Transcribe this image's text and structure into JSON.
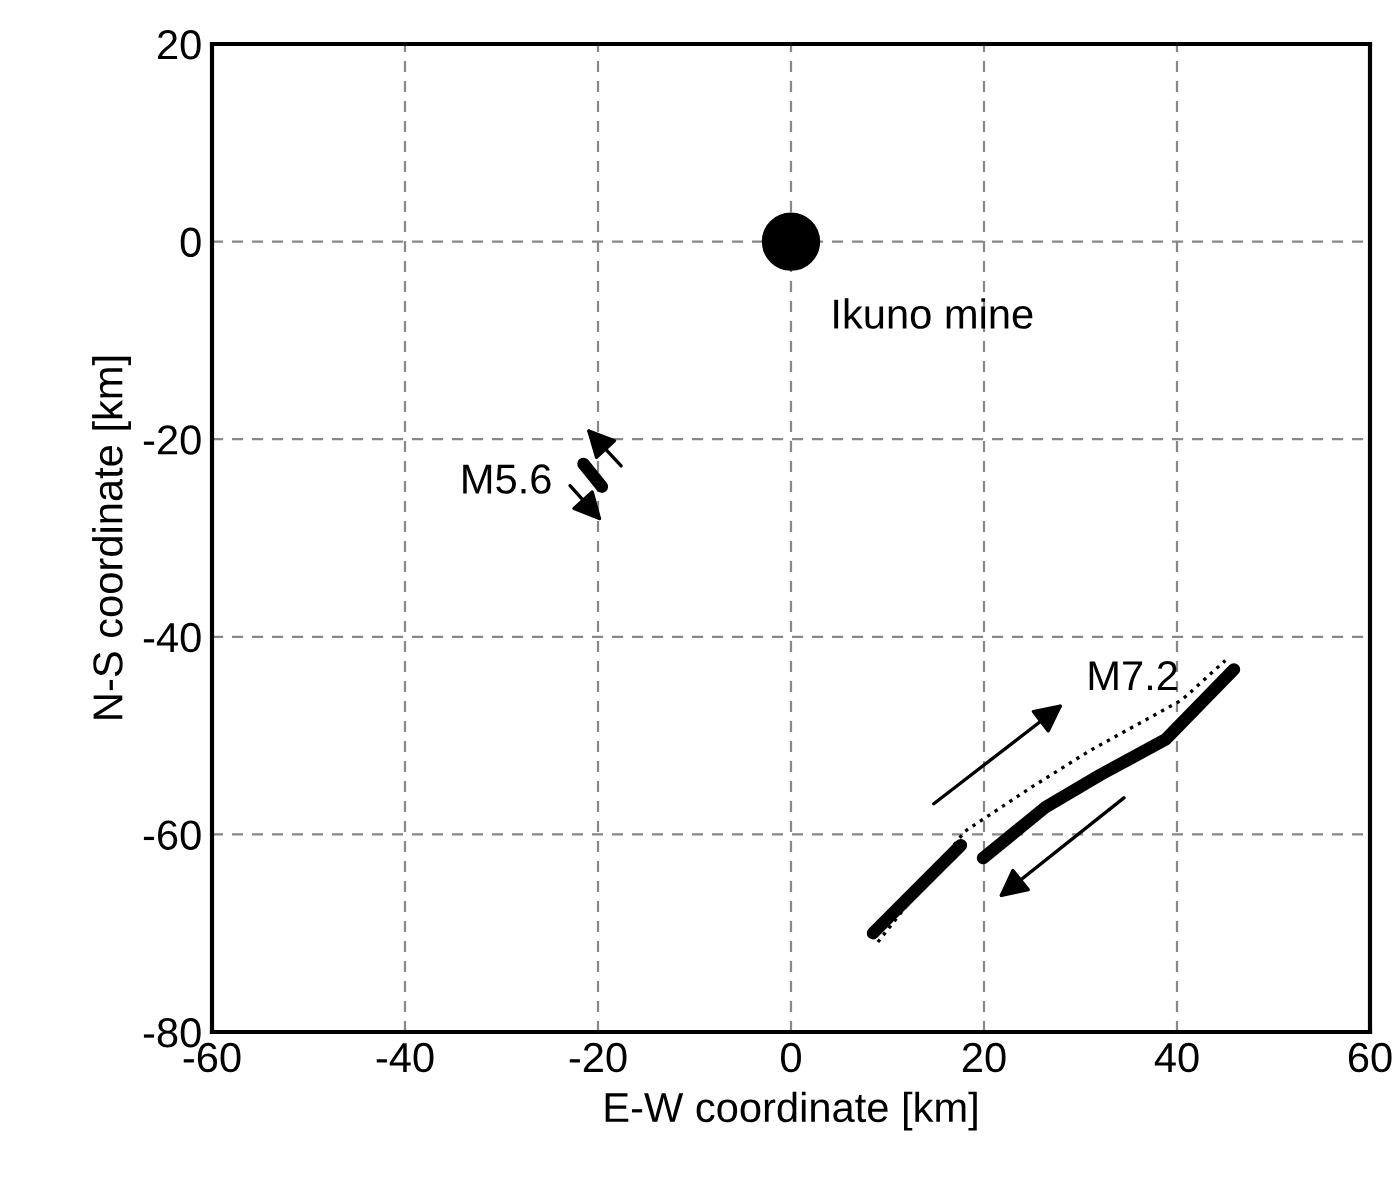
{
  "chart_data": {
    "type": "line",
    "xlabel": "E-W coordinate [km]",
    "ylabel": "N-S coordinate [km]",
    "xlim": [
      -60,
      60
    ],
    "xticks": [
      -60,
      -40,
      -20,
      0,
      20,
      40,
      60
    ],
    "ylim": [
      -80,
      20
    ],
    "yticks": [
      -80,
      -60,
      -40,
      -20,
      0,
      20
    ],
    "grid": true,
    "series": [
      {
        "type": "scatter",
        "marker": "circle",
        "color": "#000000",
        "x": [
          0
        ],
        "values": [
          0
        ]
      },
      {
        "line_style": "solid",
        "color": "#000000",
        "x": [
          -21.5,
          -19.6
        ],
        "values": [
          -22.5,
          -24.8
        ]
      },
      {
        "line_style": "dotted",
        "color": "#000000",
        "x": [
          9.0,
          18.0,
          24.8,
          31.0,
          40.5,
          45.0
        ],
        "values": [
          -70.9,
          -59.7,
          -55.3,
          -51.5,
          -46.4,
          -42.4
        ]
      },
      {
        "line_style": "solid",
        "color": "#000000",
        "x": [
          8.5,
          17.6
        ],
        "values": [
          -70.0,
          -61.1
        ]
      },
      {
        "line_style": "solid",
        "color": "#000000",
        "x": [
          19.9,
          26.3,
          32.0,
          38.8,
          45.9
        ],
        "values": [
          -62.4,
          -57.3,
          -54.0,
          -50.4,
          -43.3
        ]
      }
    ],
    "annotations": [
      "Ikuno mine",
      "M5.6",
      "M7.2"
    ]
  }
}
